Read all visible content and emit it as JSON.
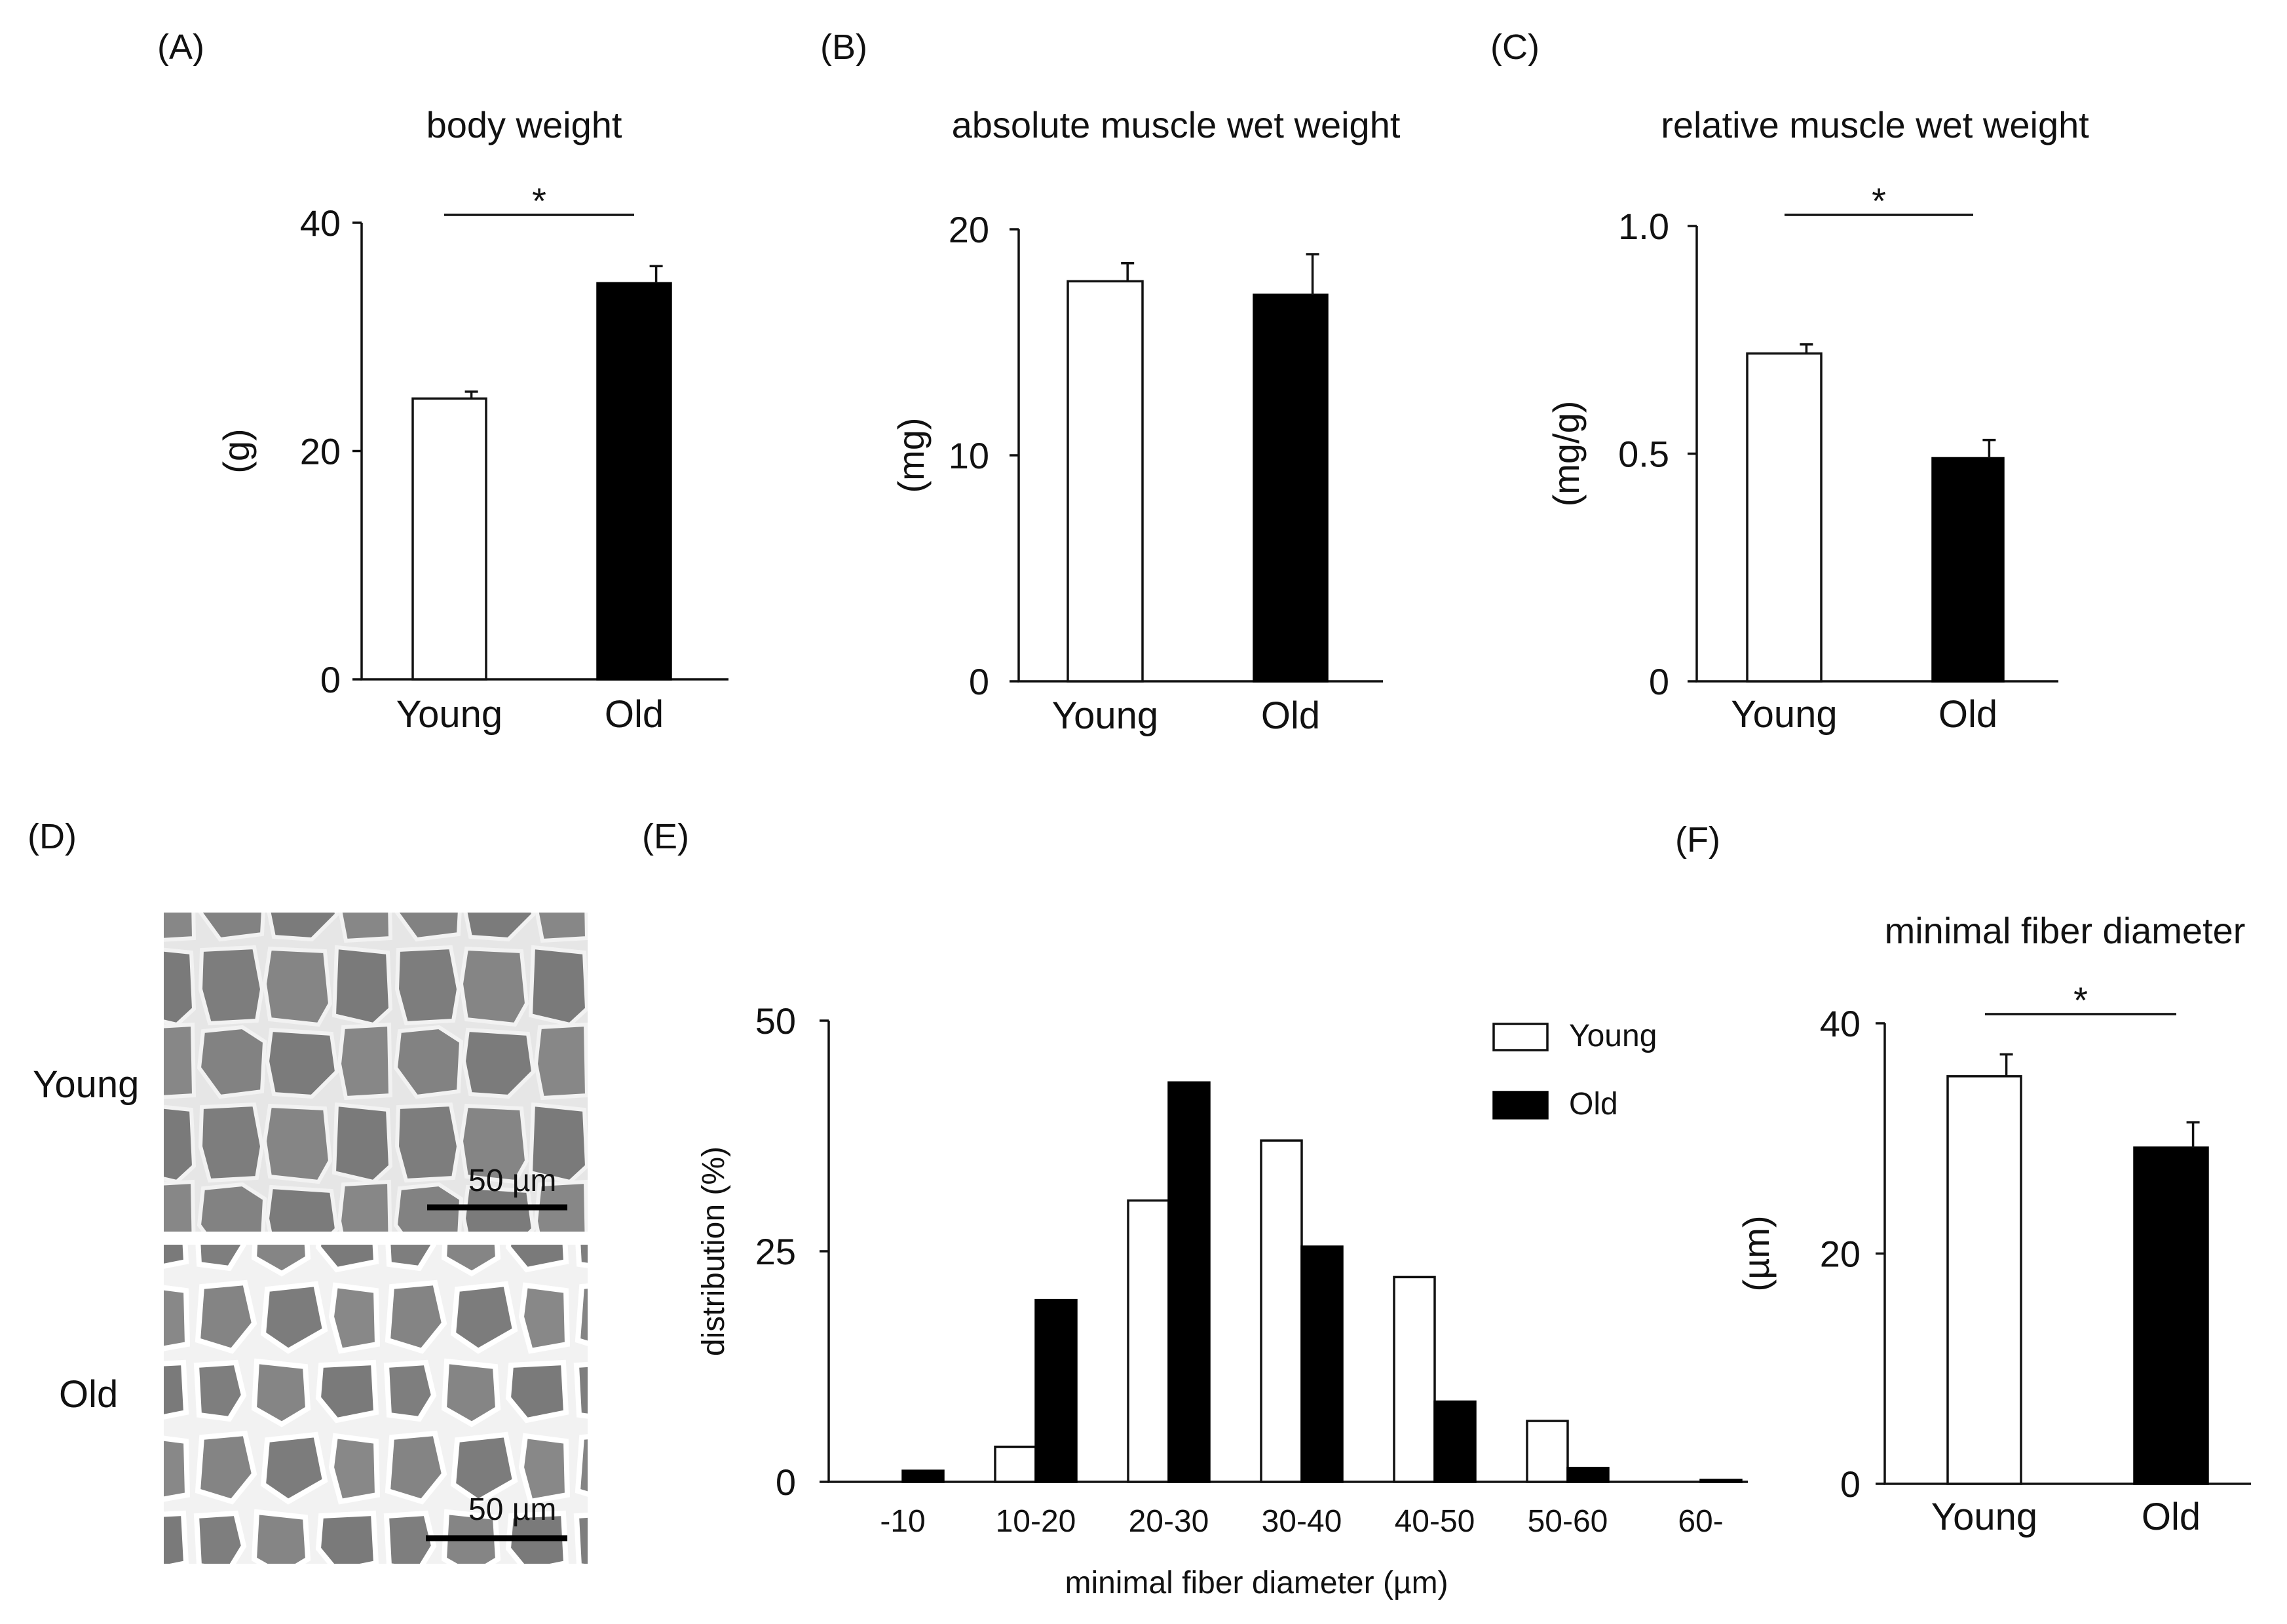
{
  "panel_letters": {
    "a": "(A)",
    "b": "(B)",
    "c": "(C)",
    "d": "(D)",
    "e": "(E)",
    "f": "(F)"
  },
  "chart_data": [
    {
      "id": "A",
      "type": "bar",
      "title": "body weight",
      "ylabel": "(g)",
      "categories": [
        "Young",
        "Old"
      ],
      "values": [
        24.6,
        34.7
      ],
      "errors": [
        0.6,
        1.5
      ],
      "ylim": [
        0,
        40
      ],
      "yticks": [
        0,
        20,
        40
      ],
      "significance": "*",
      "colors": [
        "#ffffff",
        "#000000"
      ]
    },
    {
      "id": "B",
      "type": "bar",
      "title": "absolute muscle wet weight",
      "ylabel": "(mg)",
      "categories": [
        "Young",
        "Old"
      ],
      "values": [
        17.7,
        17.1
      ],
      "errors": [
        0.8,
        1.8
      ],
      "ylim": [
        0,
        20
      ],
      "yticks": [
        0,
        10,
        20
      ],
      "significance": "",
      "colors": [
        "#ffffff",
        "#000000"
      ]
    },
    {
      "id": "C",
      "type": "bar",
      "title": "relative muscle wet weight",
      "ylabel": "(mg/g)",
      "categories": [
        "Young",
        "Old"
      ],
      "values": [
        0.72,
        0.49
      ],
      "errors": [
        0.02,
        0.04
      ],
      "ylim": [
        0,
        1.0
      ],
      "yticks": [
        0,
        0.5,
        1.0
      ],
      "ytick_labels": [
        "0",
        "0.5",
        "1.0"
      ],
      "significance": "*",
      "colors": [
        "#ffffff",
        "#000000"
      ]
    },
    {
      "id": "E",
      "type": "bar",
      "title": "",
      "xlabel": "minimal fiber diameter (µm)",
      "ylabel": "distribution (%)",
      "categories": [
        "-10",
        "10-20",
        "20-30",
        "30-40",
        "40-50",
        "50-60",
        "60-"
      ],
      "series": [
        {
          "name": "Young",
          "values": [
            0,
            3.8,
            30.5,
            37,
            22.2,
            6.6,
            0
          ],
          "color": "#ffffff"
        },
        {
          "name": "Old",
          "values": [
            1.2,
            19.7,
            43.3,
            25.5,
            8.7,
            1.5,
            0.2
          ],
          "color": "#000000"
        }
      ],
      "ylim": [
        0,
        50
      ],
      "yticks": [
        0,
        25,
        50
      ],
      "legend": "top-right"
    },
    {
      "id": "F",
      "type": "bar",
      "title": "minimal fiber diameter",
      "ylabel": "(µm)",
      "categories": [
        "Young",
        "Old"
      ],
      "values": [
        35.4,
        29.2
      ],
      "errors": [
        1.9,
        2.2
      ],
      "ylim": [
        0,
        40
      ],
      "yticks": [
        0,
        20,
        40
      ],
      "significance": "*",
      "colors": [
        "#ffffff",
        "#000000"
      ]
    }
  ],
  "micrographs": {
    "row_labels": [
      "Young",
      "Old"
    ],
    "scale_bar_label": "50 µm"
  }
}
